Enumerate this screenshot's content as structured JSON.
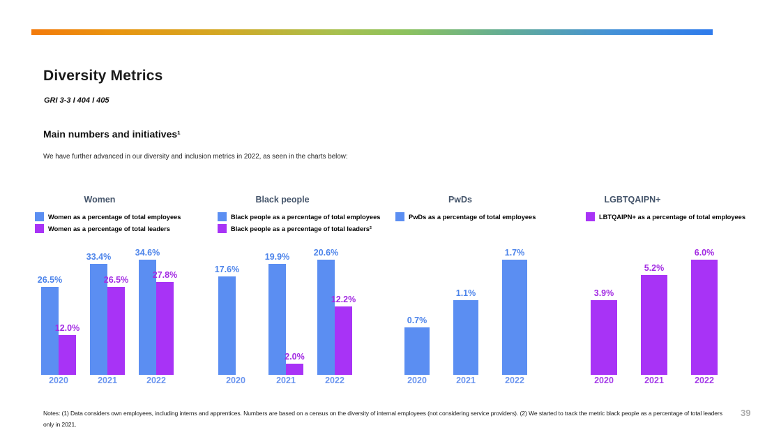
{
  "header": {
    "title": "Diversity Metrics",
    "gri_tag": "GRI 3-3 I 404 I 405",
    "section_title": "Main numbers and initiatives¹",
    "intro_text": "We have further advanced in our diversity and inclusion metrics in 2022, as seen in the charts below:"
  },
  "colors": {
    "bar_blue": "#5B8EF2",
    "bar_purple": "#A833F6",
    "label_blue": "#4D84EA",
    "label_purple": "#A32BE3",
    "year_blue": "#6B95EF",
    "year_purple": "#A43BE8",
    "chart_title": "#44546A",
    "gradient_start": "#F37A0B",
    "gradient_middle": "#8CC25E",
    "gradient_end": "#2F7BEC",
    "page_number_gray": "#ABABAB"
  },
  "chart_data": [
    {
      "type": "bar",
      "title": "Women",
      "categories": [
        "2020",
        "2021",
        "2022"
      ],
      "value_suffix": "%",
      "ymin": 0,
      "series": [
        {
          "name": "Women as a percentage of total employees",
          "color": "blue",
          "values": [
            26.5,
            33.4,
            34.6
          ]
        },
        {
          "name": "Women as a percentage of total leaders",
          "color": "purple",
          "values": [
            12.0,
            26.5,
            27.8
          ]
        }
      ]
    },
    {
      "type": "bar",
      "title": "Black people",
      "categories": [
        "2020",
        "2021",
        "2022"
      ],
      "value_suffix": "%",
      "ymin": 0,
      "series": [
        {
          "name": "Black people as a percentage of total employees",
          "color": "blue",
          "values": [
            17.6,
            19.9,
            20.6
          ]
        },
        {
          "name": "Black people as a percentage of total leaders²",
          "color": "purple",
          "values": [
            null,
            2.0,
            12.2
          ]
        }
      ]
    },
    {
      "type": "bar",
      "title": "PwDs",
      "categories": [
        "2020",
        "2021",
        "2022"
      ],
      "value_suffix": "%",
      "ymin": 0,
      "series": [
        {
          "name": "PwDs as a percentage of total employees",
          "color": "blue",
          "values": [
            0.7,
            1.1,
            1.7
          ]
        }
      ]
    },
    {
      "type": "bar",
      "title": "LGBTQAIPN+",
      "categories": [
        "2020",
        "2021",
        "2022"
      ],
      "value_suffix": "%",
      "ymin": 0,
      "series": [
        {
          "name": "LBTQAIPN+ as a percentage of total employees",
          "color": "purple",
          "values": [
            3.9,
            5.2,
            6.0
          ]
        }
      ]
    }
  ],
  "footer": {
    "notes": "Notes: (1) Data considers own employees, including interns and apprentices. Numbers are based on a census on the diversity of internal employees (not considering service providers). (2) We started to track the metric black people as a percentage of total leaders only in 2021.",
    "page_number": "39"
  }
}
